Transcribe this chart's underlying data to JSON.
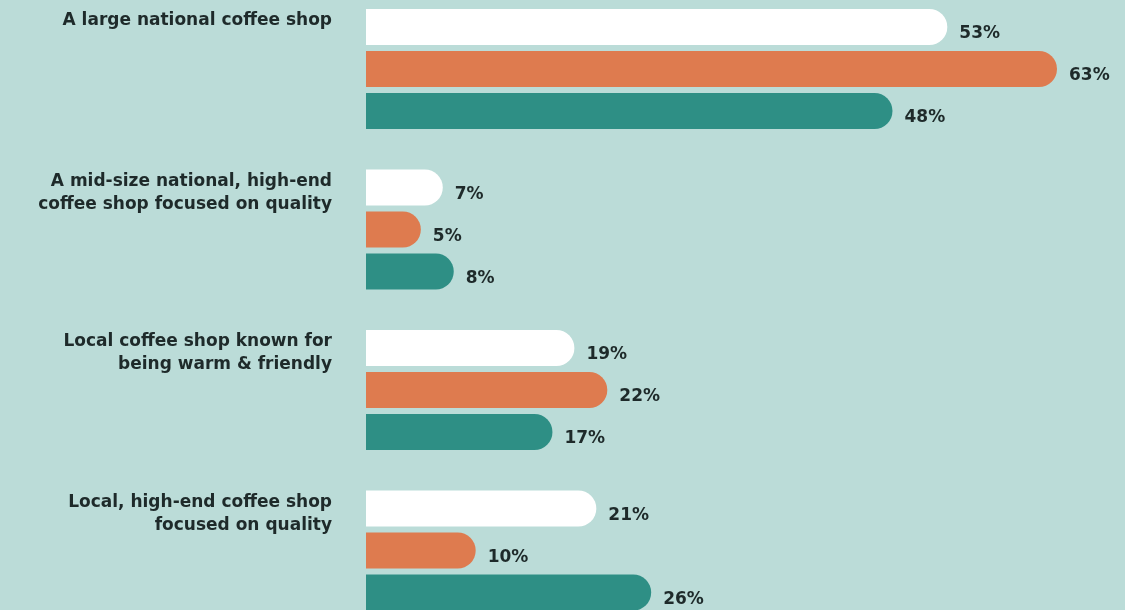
{
  "chart_data": {
    "type": "bar",
    "orientation": "horizontal",
    "categories": [
      "A large national coffee shop",
      "A mid-size national, high-end coffee shop focused on quality",
      "Local coffee shop known for being warm & friendly",
      "Local, high-end coffee shop focused on quality"
    ],
    "series": [
      {
        "color": "#ffffff",
        "values": [
          53,
          7,
          19,
          21
        ],
        "value_labels": [
          "53%",
          "7%",
          "19%",
          "21%"
        ]
      },
      {
        "color": "#de7b4f",
        "values": [
          63,
          5,
          22,
          10
        ],
        "value_labels": [
          "63%",
          "5%",
          "22%",
          "10%"
        ]
      },
      {
        "color": "#2e8f85",
        "values": [
          48,
          8,
          17,
          26
        ],
        "value_labels": [
          "48%",
          "8%",
          "17%",
          "26%"
        ]
      }
    ]
  }
}
